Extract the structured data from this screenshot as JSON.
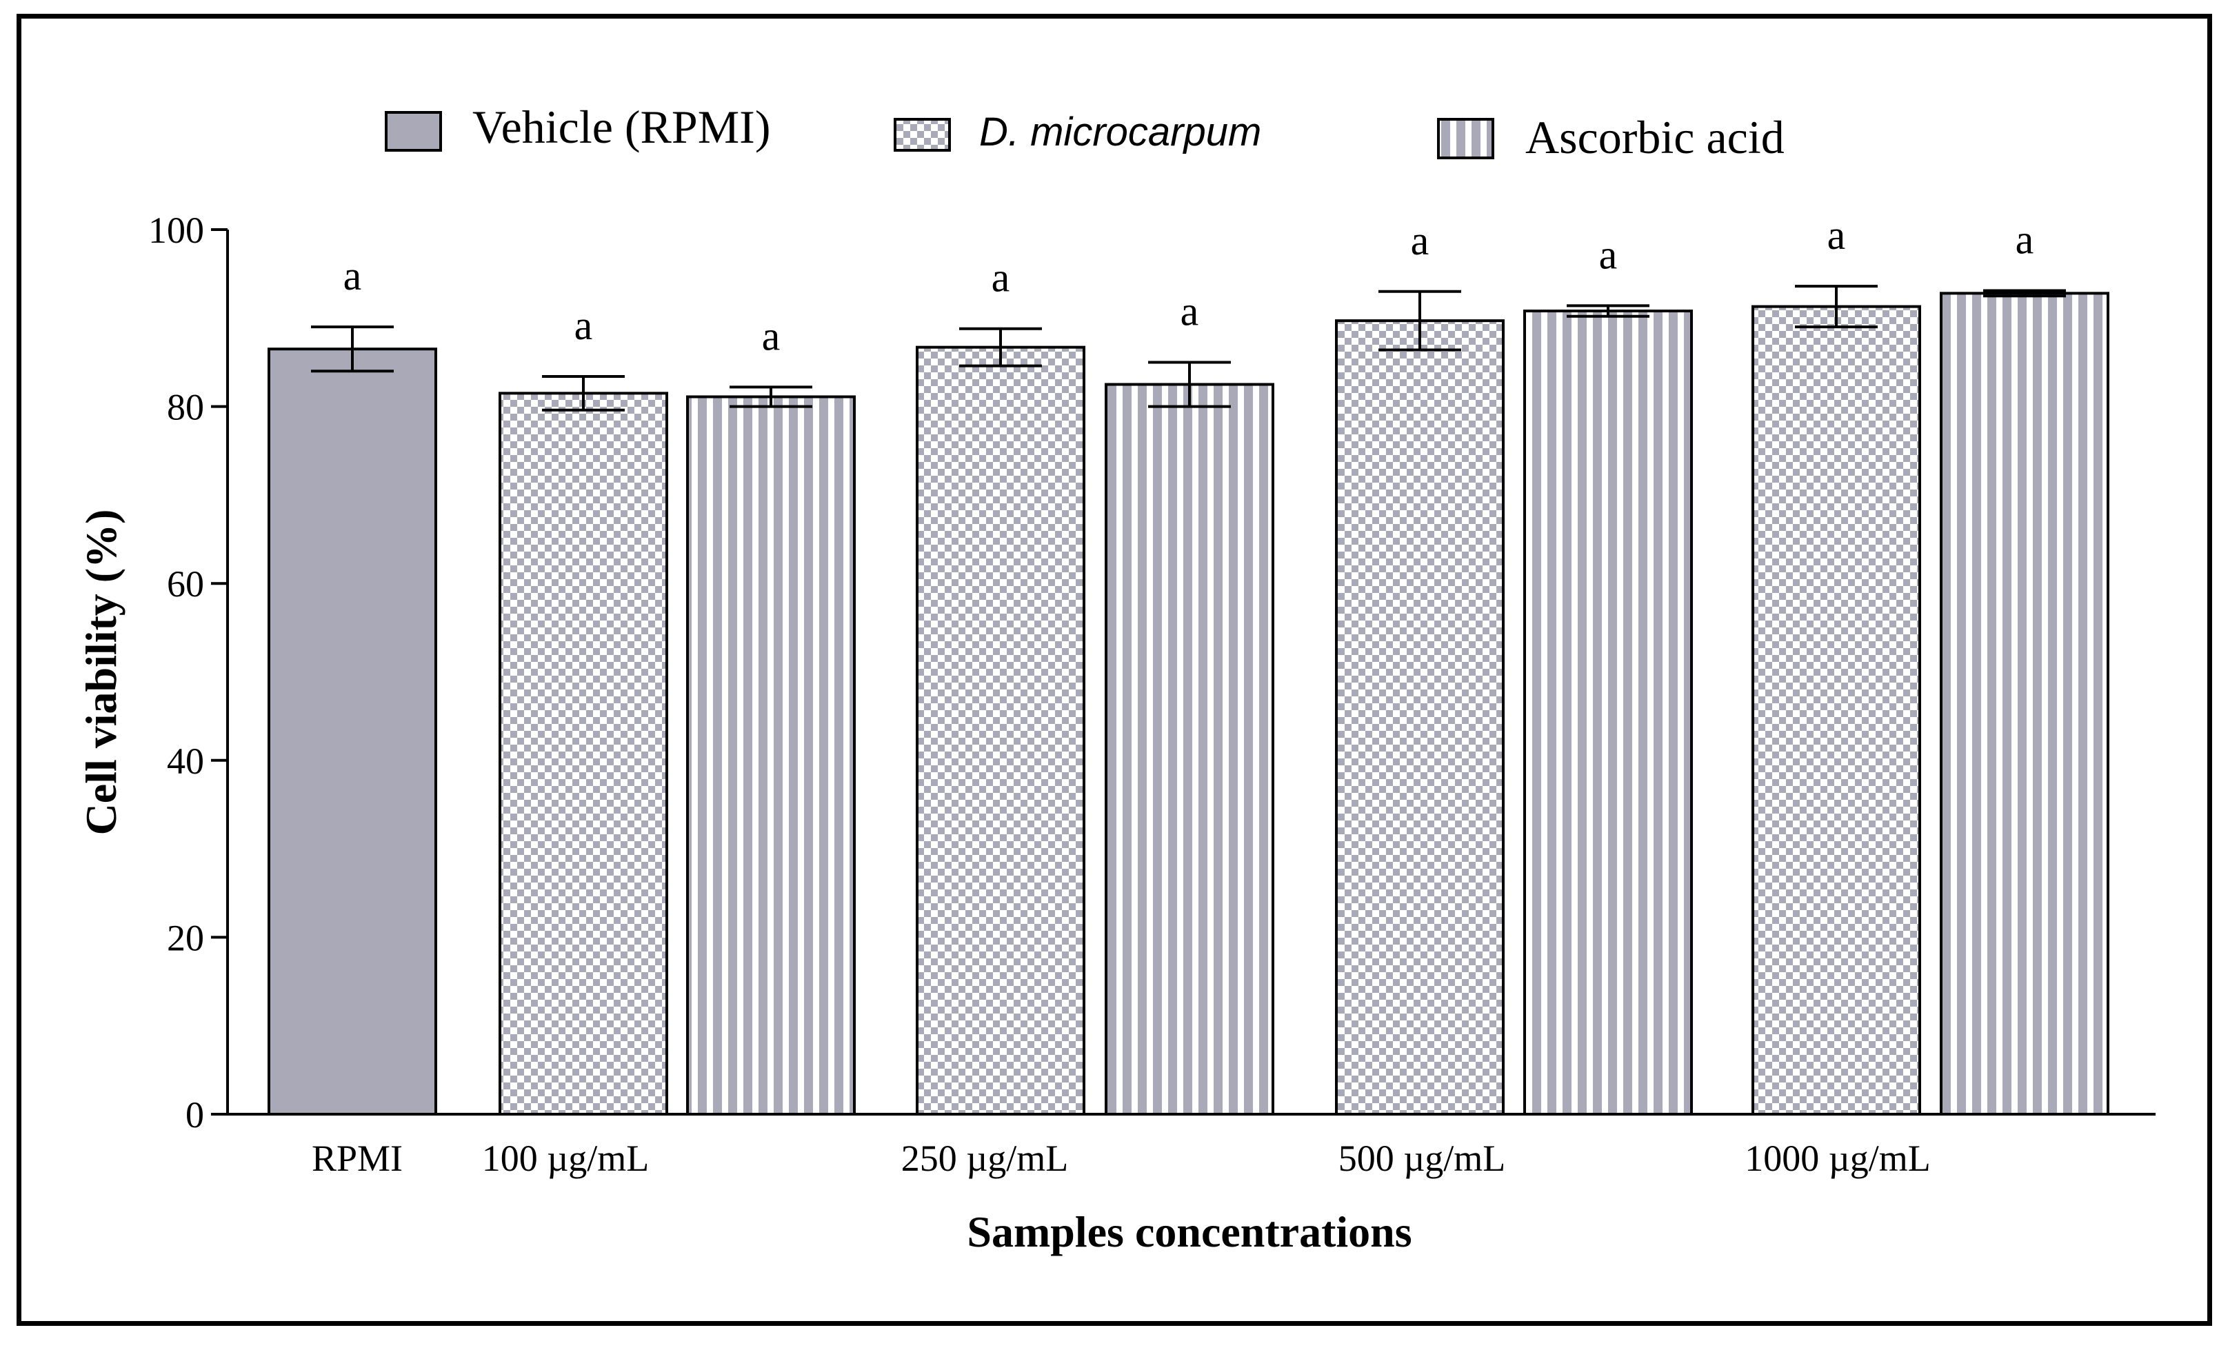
{
  "chart_data": {
    "type": "bar",
    "xlabel": "Samples concentrations",
    "ylabel": "Cell viability (%)",
    "ylim": [
      0,
      100
    ],
    "yticks": [
      0,
      20,
      40,
      60,
      80,
      100
    ],
    "grid": false,
    "legend_placement": "top",
    "categories": [
      "RPMI",
      "100 µg/mL",
      "250 µg/mL",
      "500 µg/mL",
      "1000 µg/mL"
    ],
    "series": [
      {
        "name": "Vehicle (RPMI)",
        "pattern": "solid",
        "values": [
          86.5,
          null,
          null,
          null,
          null
        ],
        "errors": [
          2.5,
          null,
          null,
          null,
          null
        ],
        "labels": [
          "a",
          null,
          null,
          null,
          null
        ]
      },
      {
        "name": "D. microcarpum",
        "pattern": "checker",
        "values": [
          null,
          81.5,
          86.7,
          89.7,
          91.3
        ],
        "errors": [
          null,
          1.9,
          2.1,
          3.3,
          2.3
        ],
        "labels": [
          null,
          "a",
          "a",
          "a",
          "a"
        ]
      },
      {
        "name": "Ascorbic acid",
        "pattern": "stripes",
        "values": [
          null,
          81.1,
          82.5,
          90.8,
          92.8
        ],
        "errors": [
          null,
          1.1,
          2.5,
          0.6,
          0.3
        ],
        "labels": [
          null,
          "a",
          "a",
          "a",
          "a"
        ]
      }
    ],
    "colors": {
      "bar_fill": "#a9a9b8",
      "pattern_light": "#ffffff",
      "outline": "#000000"
    }
  }
}
